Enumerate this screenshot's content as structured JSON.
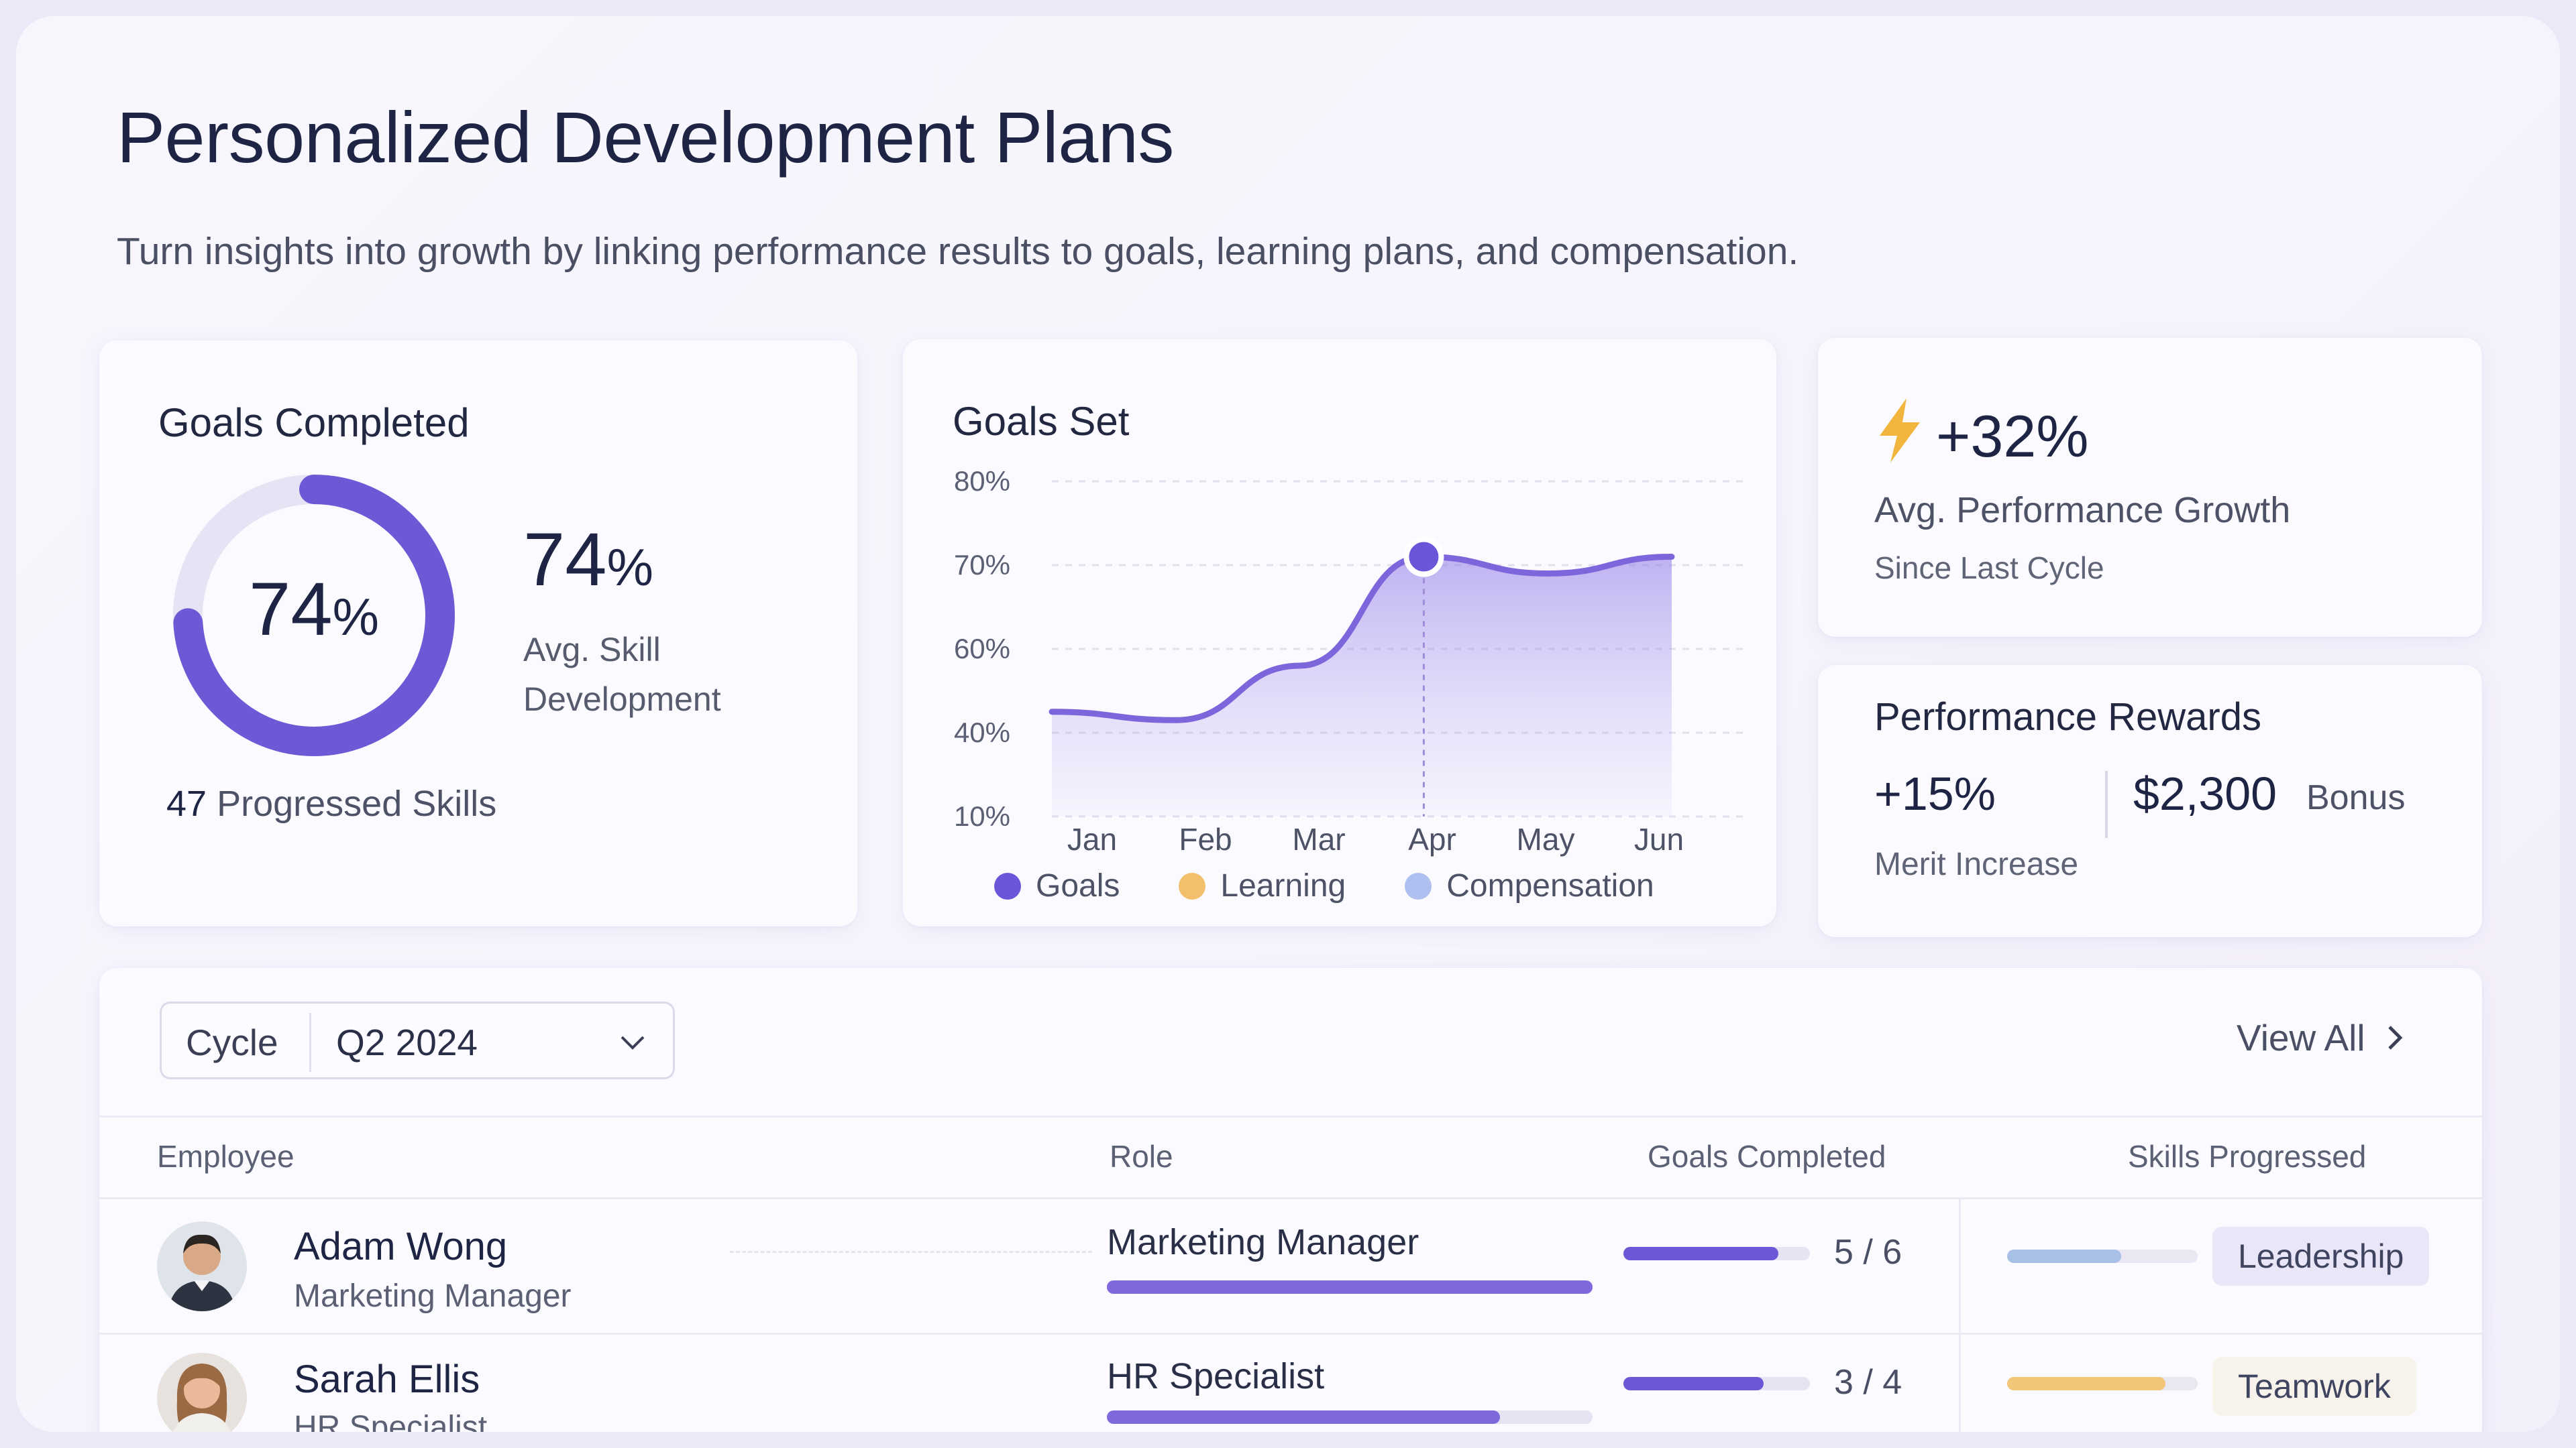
{
  "header": {
    "title": "Personalized Development Plans",
    "subtitle": "Turn insights into growth by linking performance results to goals, learning plans, and compensation."
  },
  "goals_completed": {
    "title": "Goals Completed",
    "donut_value": "74",
    "percent_sign": "%",
    "donut_fraction": 0.74,
    "stat_value": "74",
    "stat_label": "Avg. Skill Development",
    "skills_count": "47",
    "skills_label": "Progressed Skills"
  },
  "chart_data": {
    "type": "area",
    "title": "Goals Set",
    "categories": [
      "Jan",
      "Feb",
      "Mar",
      "Apr",
      "May",
      "Jun"
    ],
    "y_ticks": [
      "80%",
      "70%",
      "60%",
      "40%",
      "10%"
    ],
    "series": [
      {
        "name": "Goals",
        "values": [
          45,
          43,
          56,
          71,
          69,
          71
        ]
      }
    ],
    "highlight_index": 3,
    "legend": [
      {
        "name": "Goals",
        "color": "#6b55d8"
      },
      {
        "name": "Learning",
        "color": "#f2c06c"
      },
      {
        "name": "Compensation",
        "color": "#aebff0"
      }
    ]
  },
  "growth": {
    "icon": "lightning-icon",
    "value": "+32%",
    "label": "Avg. Performance Growth",
    "sublabel": "Since Last Cycle"
  },
  "rewards": {
    "title": "Performance Rewards",
    "merit_value": "+15%",
    "merit_label": "Merit Increase",
    "bonus_value": "$2,300",
    "bonus_label": "Bonus"
  },
  "table": {
    "cycle_label": "Cycle",
    "cycle_value": "Q2 2024",
    "view_all": "View All",
    "columns": [
      "Employee",
      "Role",
      "Goals Completed",
      "Skills Progressed"
    ],
    "rows": [
      {
        "name": "Adam Wong",
        "title": "Marketing Manager",
        "role": "Marketing Manager",
        "role_progress": 1.0,
        "goals": "5 / 6",
        "goals_progress": 0.83,
        "skill": "Leadership",
        "skill_progress": 0.6,
        "skill_color": "#a9c0e6",
        "tag_bg": "#e9e6f7"
      },
      {
        "name": "Sarah Ellis",
        "title": "HR Specialist",
        "role": "HR Specialist",
        "role_progress": 0.81,
        "goals": "3 / 4",
        "goals_progress": 0.75,
        "skill": "Teamwork",
        "skill_progress": 0.83,
        "skill_color": "#f2c678",
        "tag_bg": "#f7f2ea"
      }
    ]
  }
}
